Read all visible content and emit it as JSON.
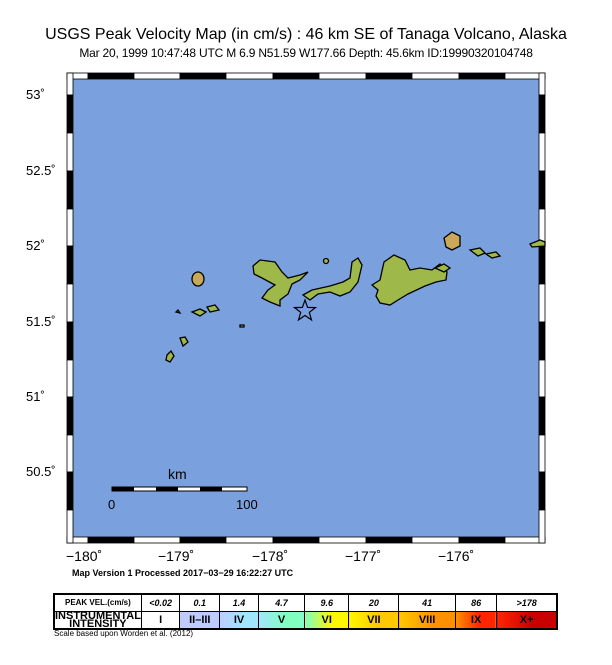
{
  "title": "USGS Peak Velocity Map (in cm/s) : 46 km SE of Tanaga Volcano, Alaska",
  "subtitle": "Mar 20, 1999 10:47:48 UTC   M 6.9   N51.59 W177.66   Depth: 45.6km   ID:19990320104748",
  "lat_labels": [
    "53˚",
    "52.5˚",
    "52˚",
    "51.5˚",
    "51˚",
    "50.5˚"
  ],
  "lon_labels": [
    "−180˚",
    "−179˚",
    "−178˚",
    "−177˚",
    "−176˚"
  ],
  "scale_bar": {
    "unit": "km",
    "start": "0",
    "end": "100"
  },
  "version": "Map Version 1 Processed 2017−03−29 16:22:27 UTC",
  "legend": {
    "row1_label": "PEAK VEL.(cm/s)",
    "row2_label": "INSTRUMENTAL INTENSITY",
    "values": [
      "<0.02",
      "0.1",
      "1.4",
      "4.7",
      "9.6",
      "20",
      "41",
      "86",
      ">178"
    ],
    "intensities": [
      "I",
      "II–III",
      "IV",
      "V",
      "VI",
      "VII",
      "VIII",
      "IX",
      "X+"
    ],
    "colors": [
      "#ffffff",
      "#bfccff",
      "#a0e6ff",
      "#80ffc0",
      "#fff700",
      "#ffc800",
      "#ff9100",
      "#ff2500",
      "#c80000"
    ]
  },
  "credit": "Scale based upon Worden et al. (2012)",
  "colors": {
    "water": "#7aa1dd"
  }
}
